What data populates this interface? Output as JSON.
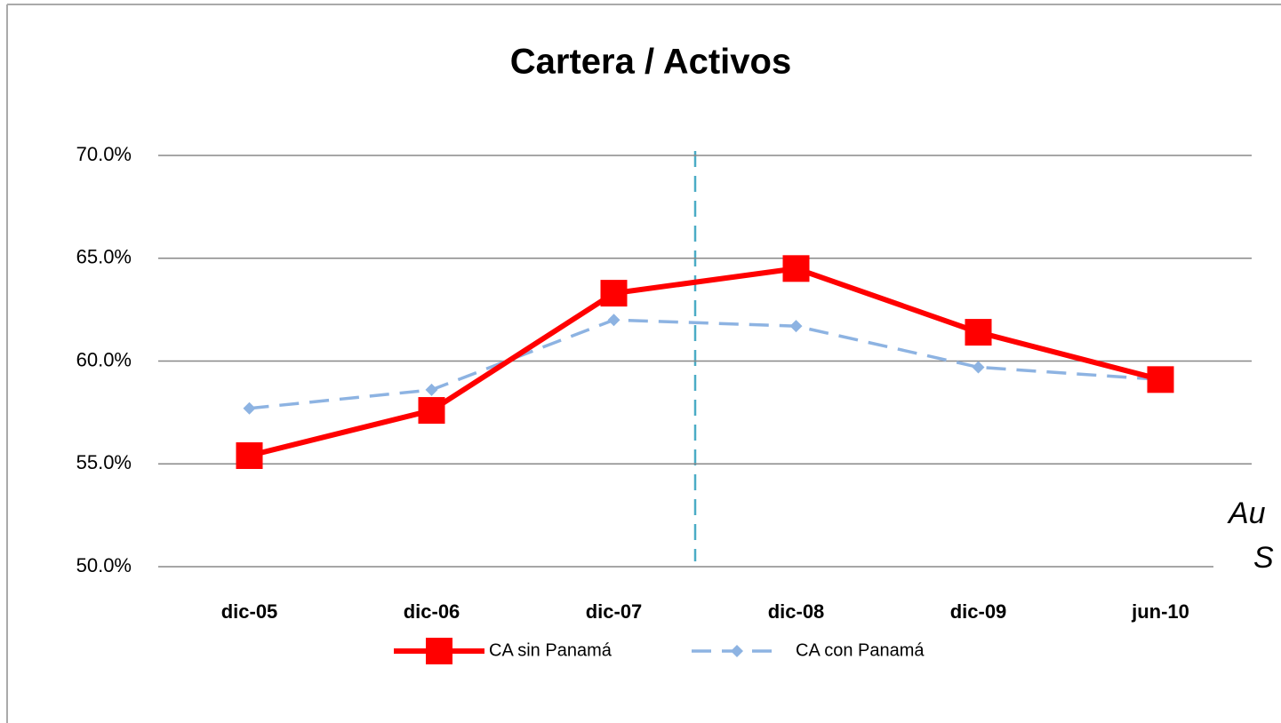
{
  "chart_data": {
    "type": "line",
    "title": "Cartera / Activos",
    "categories": [
      "dic-05",
      "dic-06",
      "dic-07",
      "dic-08",
      "dic-09",
      "jun-10"
    ],
    "series": [
      {
        "name": "CA sin Panamá",
        "color": "#ff0000",
        "values": [
          55.4,
          57.6,
          63.3,
          64.5,
          61.4,
          59.1
        ]
      },
      {
        "name": "CA con Panamá",
        "color": "#8db3e2",
        "values": [
          57.7,
          58.6,
          62.0,
          61.7,
          59.7,
          59.1
        ]
      }
    ],
    "ylim": [
      50,
      70
    ],
    "yticks": [
      {
        "value": 50,
        "label": "50.0%"
      },
      {
        "value": 55,
        "label": "55.0%"
      },
      {
        "value": 60,
        "label": "60.0%"
      },
      {
        "value": 65,
        "label": "65.0%"
      },
      {
        "value": 70,
        "label": "70.0%"
      }
    ],
    "grid": true,
    "legend": "bottom",
    "annotations": [
      "Au",
      "S"
    ]
  }
}
